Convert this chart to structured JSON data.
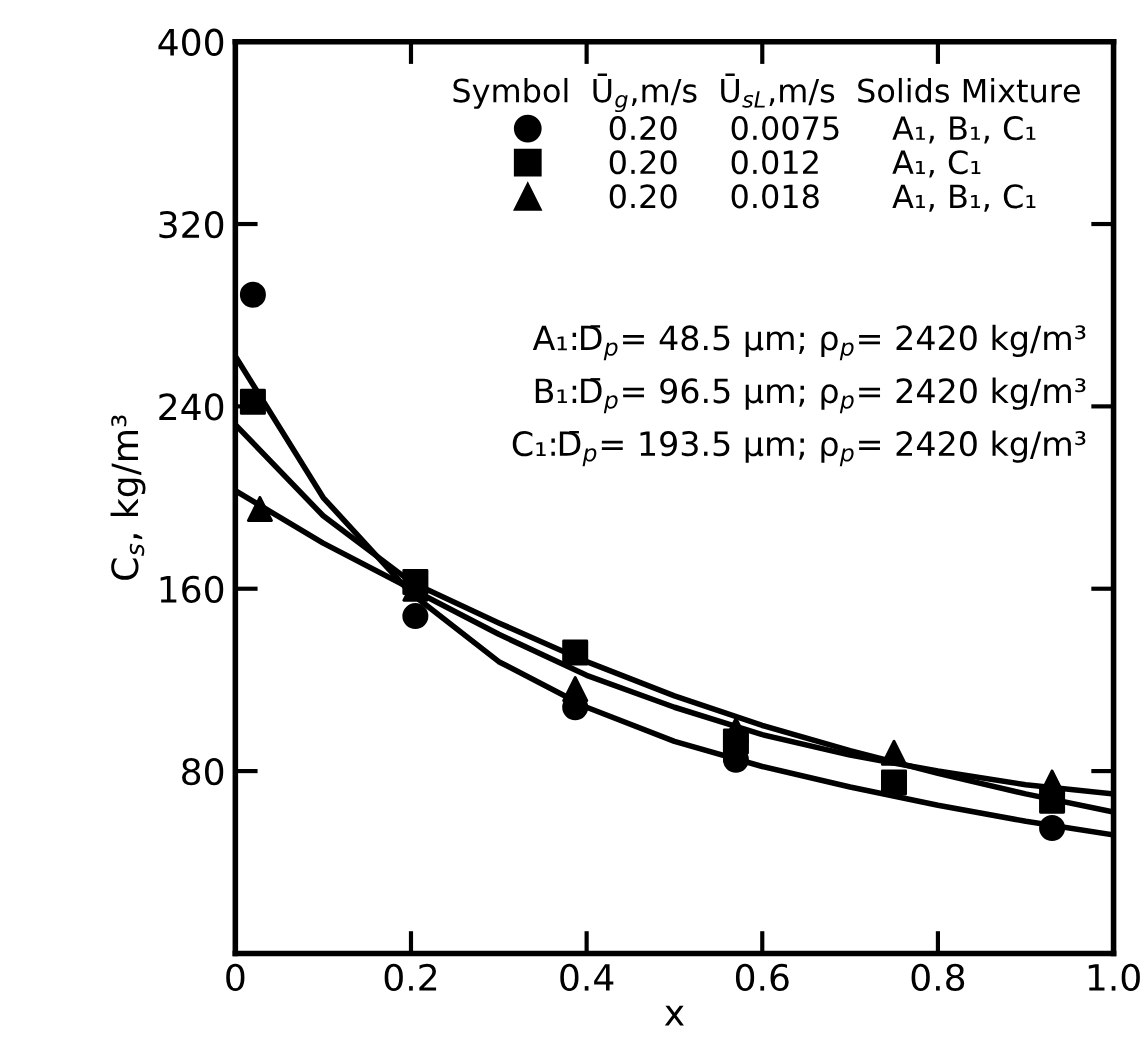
{
  "chart_data": {
    "type": "scatter",
    "xlabel": "x",
    "ylabel": "C$_{s}$, kg/m³",
    "xlim": [
      0,
      1.0
    ],
    "ylim": [
      0,
      400
    ],
    "xticks": [
      0,
      0.2,
      0.4,
      0.6,
      0.8,
      {
        "value": 1.0,
        "label": "1.0"
      }
    ],
    "yticks": [
      80,
      160,
      240,
      320,
      400
    ],
    "legend": "top right",
    "legend_title": "Symbol  Ū$_{g}$,m/s  Ū$_{sL}$,m/s  Solids Mixture",
    "series": [
      {
        "name": "0.20     0.0075     A₁, B₁, C₁",
        "marker": "circle",
        "color": "#000000",
        "x": [
          0.02,
          0.205,
          0.387,
          0.57,
          0.75,
          0.93
        ],
        "values": [
          289,
          148,
          108,
          85,
          null,
          55
        ]
      },
      {
        "name": "0.20     0.012       A₁, C₁",
        "marker": "square",
        "color": "#000000",
        "x": [
          0.02,
          0.205,
          0.387,
          0.57,
          0.75,
          0.93
        ],
        "values": [
          242,
          163,
          132,
          93,
          75,
          67
        ]
      },
      {
        "name": "0.20     0.018       A₁, B₁, C₁",
        "marker": "triangle",
        "color": "#000000",
        "x": [
          0.028,
          0.205,
          0.387,
          0.57,
          0.75,
          0.93
        ],
        "values": [
          195,
          160,
          116,
          98,
          88,
          75
        ]
      },
      {
        "type": "line",
        "marker": "none",
        "color": "#000000",
        "x": [
          0,
          0.1,
          0.2,
          0.3,
          0.4,
          0.5,
          0.6,
          0.7,
          0.8,
          0.9,
          1.0
        ],
        "values": [
          262,
          200,
          158,
          128,
          108,
          93,
          82,
          73,
          65,
          58,
          52
        ]
      },
      {
        "type": "line",
        "marker": "none",
        "color": "#000000",
        "x": [
          0,
          0.1,
          0.2,
          0.3,
          0.4,
          0.5,
          0.6,
          0.7,
          0.8,
          0.9,
          1.0
        ],
        "values": [
          232,
          192,
          163,
          145,
          128,
          113,
          100,
          89,
          79,
          70,
          62
        ]
      },
      {
        "type": "line",
        "marker": "none",
        "color": "#000000",
        "x": [
          0,
          0.1,
          0.2,
          0.3,
          0.4,
          0.5,
          0.6,
          0.7,
          0.8,
          0.9,
          1.0
        ],
        "values": [
          203,
          180,
          160,
          140,
          122,
          108,
          96,
          87,
          80,
          74,
          70
        ]
      }
    ],
    "annotations": [
      "A₁:D̄$_{p}$= 48.5 μm; ρ$_{p}$= 2420 kg/m³",
      "B₁:D̄$_{p}$= 96.5 μm; ρ$_{p}$= 2420 kg/m³",
      "C₁:D̄$_{p}$= 193.5 μm; ρ$_{p}$= 2420 kg/m³"
    ]
  }
}
